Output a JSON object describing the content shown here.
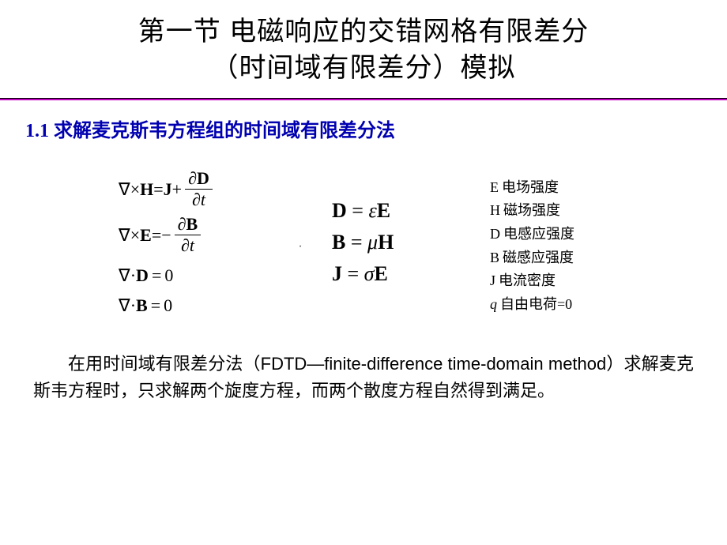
{
  "title": {
    "line1": "第一节  电磁响应的交错网格有限差分",
    "line2": "（时间域有限差分）模拟"
  },
  "colors": {
    "divider": "#c000c0",
    "heading": "#0000b0",
    "text": "#000000",
    "background": "#ffffff"
  },
  "section_heading": "1.1  求解麦克斯韦方程组的时间域有限差分法",
  "maxwell": {
    "eq1": {
      "lhs_op": "∇×",
      "lhs_var": "H",
      "eq": "=",
      "rhs_var": "J",
      "plus": "+",
      "frac_num_d": "∂",
      "frac_num_v": "D",
      "frac_den_d": "∂",
      "frac_den_v": "t"
    },
    "eq2": {
      "lhs_op": "∇×",
      "lhs_var": "E",
      "eq": "=",
      "neg": "−",
      "frac_num_d": "∂",
      "frac_num_v": "B",
      "frac_den_d": "∂",
      "frac_den_v": "t"
    },
    "eq3": {
      "lhs_op": "∇·",
      "lhs_var": "D",
      "eq": "=",
      "rhs": "0"
    },
    "eq4": {
      "lhs_op": "∇·",
      "lhs_var": "B",
      "eq": "=",
      "rhs": "0"
    }
  },
  "dot": "·",
  "constitutive": {
    "r1": {
      "l": "D",
      "eq": " = ",
      "coef": "ε",
      "r": "E"
    },
    "r2": {
      "l": "B",
      "eq": " = ",
      "coef": "μ",
      "r": "H"
    },
    "r3": {
      "l": "J",
      "eq": " = ",
      "coef": "σ",
      "r": "E"
    }
  },
  "legend": {
    "e": {
      "sym": "E",
      "txt": "电场强度"
    },
    "h": {
      "sym": "H",
      "txt": "磁场强度"
    },
    "d": {
      "sym": "D",
      "txt": "电感应强度"
    },
    "b": {
      "sym": "B",
      "txt": "磁感应强度"
    },
    "j": {
      "sym": "J",
      "txt": "电流密度"
    },
    "q": {
      "sym": "q",
      "txt": "自由电荷=0"
    }
  },
  "paragraph": "在用时间域有限差分法（FDTD—finite-difference  time-domain method）求解麦克斯韦方程时，只求解两个旋度方程，而两个散度方程自然得到满足。",
  "typography": {
    "title_fontsize": 34,
    "heading_fontsize": 24,
    "eq_fontsize_col1": 22,
    "eq_fontsize_col2": 26,
    "legend_fontsize": 18,
    "para_fontsize": 22
  }
}
